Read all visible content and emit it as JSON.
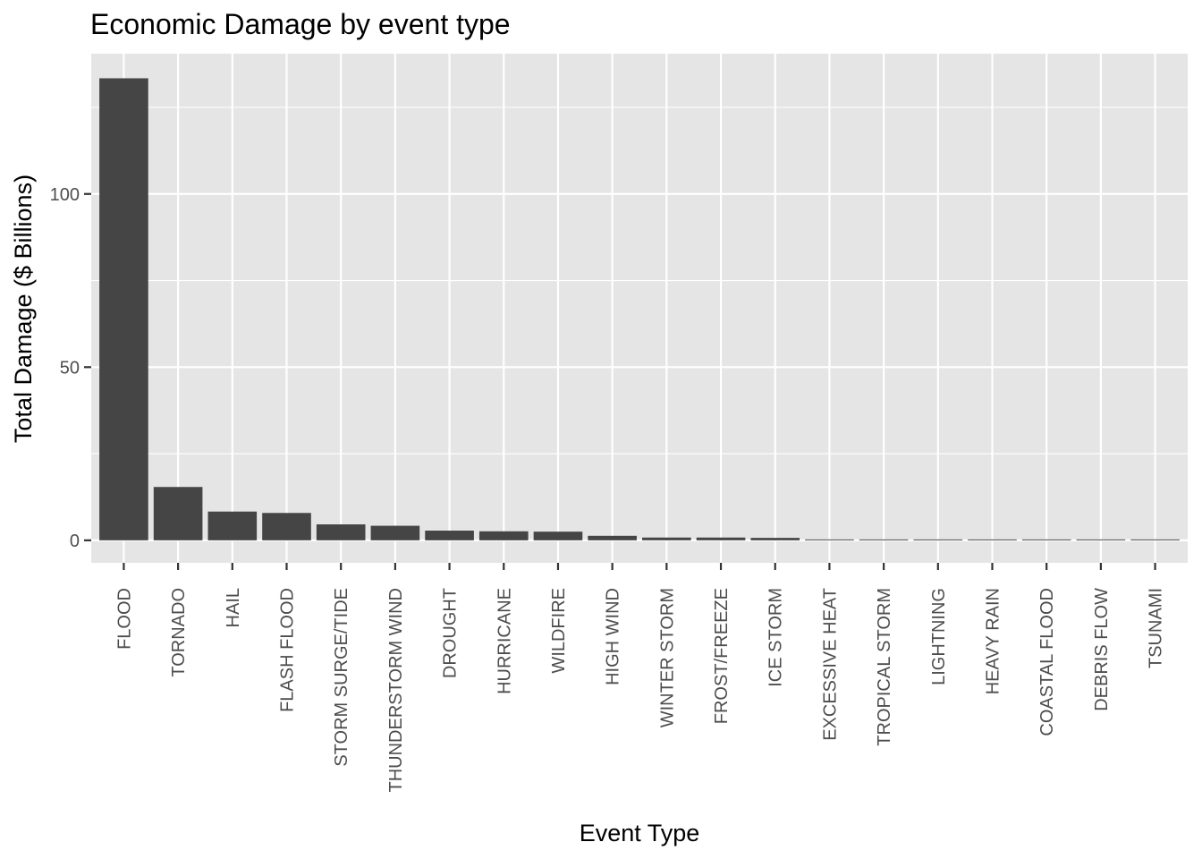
{
  "chart_data": {
    "type": "bar",
    "title": "Economic Damage by event type",
    "xlabel": "Event Type",
    "ylabel": "Total Damage ($ Billions)",
    "categories": [
      "FLOOD",
      "TORNADO",
      "HAIL",
      "FLASH FLOOD",
      "STORM SURGE/TIDE",
      "THUNDERSTORM WIND",
      "DROUGHT",
      "HURRICANE",
      "WILDFIRE",
      "HIGH WIND",
      "WINTER STORM",
      "FROST/FREEZE",
      "ICE STORM",
      "EXCESSIVE HEAT",
      "TROPICAL STORM",
      "LIGHTNING",
      "HEAVY RAIN",
      "COASTAL FLOOD",
      "DEBRIS FLOW",
      "TSUNAMI"
    ],
    "values": [
      133.4,
      15.4,
      8.3,
      7.9,
      4.6,
      4.2,
      2.8,
      2.6,
      2.5,
      1.3,
      0.8,
      0.8,
      0.7,
      0.25,
      0.22,
      0.2,
      0.18,
      0.14,
      0.12,
      0.1
    ],
    "ylim": [
      -6.5,
      140.5
    ],
    "yticks": [
      0,
      50,
      100
    ],
    "ytick_labels": [
      "0",
      "50",
      "100"
    ],
    "grid": true,
    "bar_color": "#454545",
    "panel_color": "#e5e5e5",
    "grid_color": "#ffffff"
  }
}
